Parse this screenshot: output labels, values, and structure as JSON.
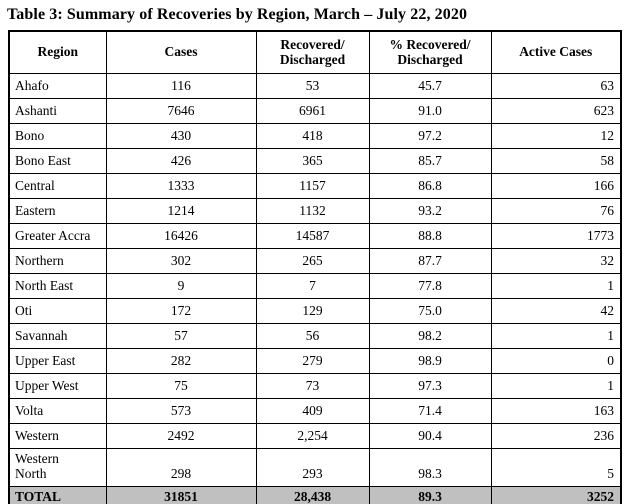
{
  "title": "Table 3: Summary of Recoveries by Region, March – July 22, 2020",
  "table": {
    "headers": {
      "region": "Region",
      "cases": "Cases",
      "recovered": "Recovered/\nDischarged",
      "pct_recovered": "% Recovered/\nDischarged",
      "active": "Active Cases"
    },
    "rows": [
      {
        "region": "Ahafo",
        "cases": "116",
        "recovered": "53",
        "pct_recovered": "45.7",
        "active": "63"
      },
      {
        "region": "Ashanti",
        "cases": "7646",
        "recovered": "6961",
        "pct_recovered": "91.0",
        "active": "623"
      },
      {
        "region": "Bono",
        "cases": "430",
        "recovered": "418",
        "pct_recovered": "97.2",
        "active": "12"
      },
      {
        "region": "Bono East",
        "cases": "426",
        "recovered": "365",
        "pct_recovered": "85.7",
        "active": "58"
      },
      {
        "region": "Central",
        "cases": "1333",
        "recovered": "1157",
        "pct_recovered": "86.8",
        "active": "166"
      },
      {
        "region": "Eastern",
        "cases": "1214",
        "recovered": "1132",
        "pct_recovered": "93.2",
        "active": "76"
      },
      {
        "region": "Greater Accra",
        "cases": "16426",
        "recovered": "14587",
        "pct_recovered": "88.8",
        "active": "1773"
      },
      {
        "region": "Northern",
        "cases": "302",
        "recovered": "265",
        "pct_recovered": "87.7",
        "active": "32"
      },
      {
        "region": "North East",
        "cases": "9",
        "recovered": "7",
        "pct_recovered": "77.8",
        "active": "1"
      },
      {
        "region": "Oti",
        "cases": "172",
        "recovered": "129",
        "pct_recovered": "75.0",
        "active": "42"
      },
      {
        "region": "Savannah",
        "cases": "57",
        "recovered": "56",
        "pct_recovered": "98.2",
        "active": "1"
      },
      {
        "region": "Upper East",
        "cases": "282",
        "recovered": "279",
        "pct_recovered": "98.9",
        "active": "0"
      },
      {
        "region": "Upper West",
        "cases": "75",
        "recovered": "73",
        "pct_recovered": "97.3",
        "active": "1"
      },
      {
        "region": "Volta",
        "cases": "573",
        "recovered": "409",
        "pct_recovered": "71.4",
        "active": "163"
      },
      {
        "region": "Western",
        "cases": "2492",
        "recovered": "2,254",
        "pct_recovered": "90.4",
        "active": "236"
      },
      {
        "region": "Western\nNorth",
        "cases": "298",
        "recovered": "293",
        "pct_recovered": "98.3",
        "active": "5"
      }
    ],
    "total": {
      "label": "TOTAL",
      "cases": "31851",
      "recovered": "28,438",
      "pct_recovered": "89.3",
      "active": "3252"
    }
  }
}
